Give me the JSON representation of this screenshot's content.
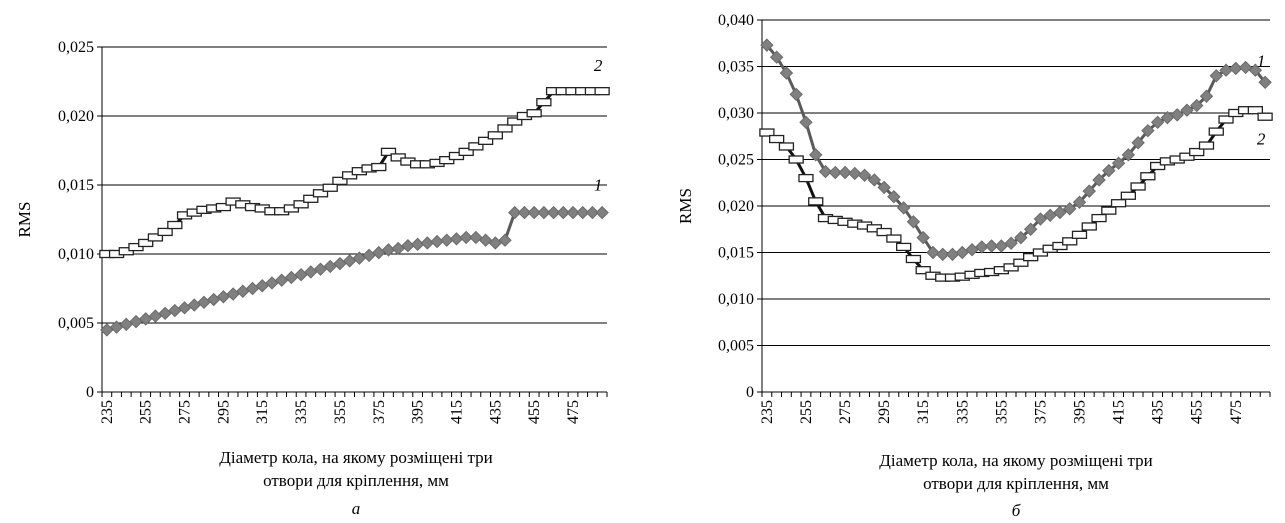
{
  "chart_data": [
    {
      "type": "line",
      "panel_label": "а",
      "ylabel": "RMS",
      "xlabel_lines": [
        "Діаметр кола, на якому розміщені три",
        "отвори для кріплення, мм"
      ],
      "ylim": [
        0,
        0.025
      ],
      "y_ticks": [
        "0",
        "0,005",
        "0,010",
        "0,015",
        "0,020",
        "0,025"
      ],
      "x_tick_labels": [
        "235",
        "255",
        "275",
        "295",
        "315",
        "335",
        "355",
        "375",
        "395",
        "415",
        "435",
        "455",
        "475"
      ],
      "x": [
        235,
        240,
        245,
        250,
        255,
        260,
        265,
        270,
        275,
        280,
        285,
        290,
        295,
        300,
        305,
        310,
        315,
        320,
        325,
        330,
        335,
        340,
        345,
        350,
        355,
        360,
        365,
        370,
        375,
        380,
        385,
        390,
        395,
        400,
        405,
        410,
        415,
        420,
        425,
        430,
        435,
        440,
        445,
        450,
        455,
        460,
        465,
        470,
        475,
        480,
        485,
        490
      ],
      "grid": true,
      "series": [
        {
          "name": "1",
          "marker": "diamond",
          "color": "#7a7a7a",
          "values": [
            0.0045,
            0.0047,
            0.0049,
            0.0051,
            0.0053,
            0.0055,
            0.0057,
            0.0059,
            0.0061,
            0.0063,
            0.0065,
            0.0067,
            0.0069,
            0.0071,
            0.0073,
            0.0075,
            0.0077,
            0.0079,
            0.0081,
            0.0083,
            0.0085,
            0.0087,
            0.0089,
            0.0091,
            0.0093,
            0.0095,
            0.0097,
            0.0099,
            0.0101,
            0.0103,
            0.0104,
            0.0106,
            0.0107,
            0.0108,
            0.0109,
            0.011,
            0.0111,
            0.0112,
            0.0112,
            0.011,
            0.0108,
            0.011,
            0.013,
            0.013,
            0.013,
            0.013,
            0.013,
            0.013,
            0.013,
            0.013,
            0.013,
            0.013
          ]
        },
        {
          "name": "2",
          "marker": "rect",
          "color": "#111111",
          "values": [
            0.01,
            0.01,
            0.0102,
            0.0105,
            0.0108,
            0.0112,
            0.0116,
            0.0121,
            0.0128,
            0.013,
            0.0132,
            0.0133,
            0.0134,
            0.0138,
            0.0136,
            0.0134,
            0.0133,
            0.0131,
            0.0131,
            0.0133,
            0.0136,
            0.014,
            0.0144,
            0.0148,
            0.0153,
            0.0157,
            0.016,
            0.0162,
            0.0163,
            0.0174,
            0.017,
            0.0167,
            0.0165,
            0.0165,
            0.0166,
            0.0168,
            0.0171,
            0.0174,
            0.0178,
            0.0182,
            0.0186,
            0.0191,
            0.0196,
            0.02,
            0.0202,
            0.021,
            0.0218,
            0.0218,
            0.0218,
            0.0218,
            0.0218,
            0.0218
          ]
        }
      ]
    },
    {
      "type": "line",
      "panel_label": "б",
      "ylabel": "RMS",
      "xlabel_lines": [
        "Діаметр кола, на якому розміщені три",
        "отвори для кріплення, мм"
      ],
      "ylim": [
        0,
        0.04
      ],
      "y_ticks": [
        "0",
        "0,005",
        "0,010",
        "0,015",
        "0,020",
        "0,025",
        "0,030",
        "0,035",
        "0,040"
      ],
      "x_tick_labels": [
        "235",
        "255",
        "275",
        "295",
        "315",
        "335",
        "355",
        "375",
        "395",
        "415",
        "435",
        "455",
        "475"
      ],
      "x": [
        235,
        240,
        245,
        250,
        255,
        260,
        265,
        270,
        275,
        280,
        285,
        290,
        295,
        300,
        305,
        310,
        315,
        320,
        325,
        330,
        335,
        340,
        345,
        350,
        355,
        360,
        365,
        370,
        375,
        380,
        385,
        390,
        395,
        400,
        405,
        410,
        415,
        420,
        425,
        430,
        435,
        440,
        445,
        450,
        455,
        460,
        465,
        470,
        475,
        480,
        485,
        490
      ],
      "grid": true,
      "series": [
        {
          "name": "1",
          "marker": "diamond",
          "color": "#7a7a7a",
          "values": [
            0.0373,
            0.036,
            0.0343,
            0.032,
            0.029,
            0.0255,
            0.0237,
            0.0236,
            0.0236,
            0.0235,
            0.0233,
            0.0228,
            0.022,
            0.021,
            0.0198,
            0.0183,
            0.0166,
            0.015,
            0.0148,
            0.0148,
            0.015,
            0.0153,
            0.0156,
            0.0157,
            0.0157,
            0.016,
            0.0166,
            0.0175,
            0.0186,
            0.019,
            0.0193,
            0.0197,
            0.0204,
            0.0216,
            0.0228,
            0.0238,
            0.0246,
            0.0255,
            0.0268,
            0.0281,
            0.029,
            0.0295,
            0.0298,
            0.0303,
            0.0308,
            0.0318,
            0.034,
            0.0346,
            0.0348,
            0.0349,
            0.0346,
            0.0333
          ]
        },
        {
          "name": "2",
          "marker": "rect",
          "color": "#111111",
          "values": [
            0.0279,
            0.0272,
            0.0264,
            0.025,
            0.023,
            0.0205,
            0.0187,
            0.0185,
            0.0183,
            0.0181,
            0.0179,
            0.0176,
            0.0172,
            0.0165,
            0.0156,
            0.0143,
            0.0131,
            0.0125,
            0.0123,
            0.0123,
            0.0124,
            0.0126,
            0.0128,
            0.0129,
            0.0131,
            0.0134,
            0.0139,
            0.0145,
            0.015,
            0.0154,
            0.0157,
            0.0162,
            0.0169,
            0.0178,
            0.0187,
            0.0195,
            0.0203,
            0.0211,
            0.0221,
            0.0232,
            0.0243,
            0.0248,
            0.025,
            0.0253,
            0.0258,
            0.0265,
            0.028,
            0.0293,
            0.03,
            0.0303,
            0.0303,
            0.0296
          ]
        }
      ]
    }
  ]
}
